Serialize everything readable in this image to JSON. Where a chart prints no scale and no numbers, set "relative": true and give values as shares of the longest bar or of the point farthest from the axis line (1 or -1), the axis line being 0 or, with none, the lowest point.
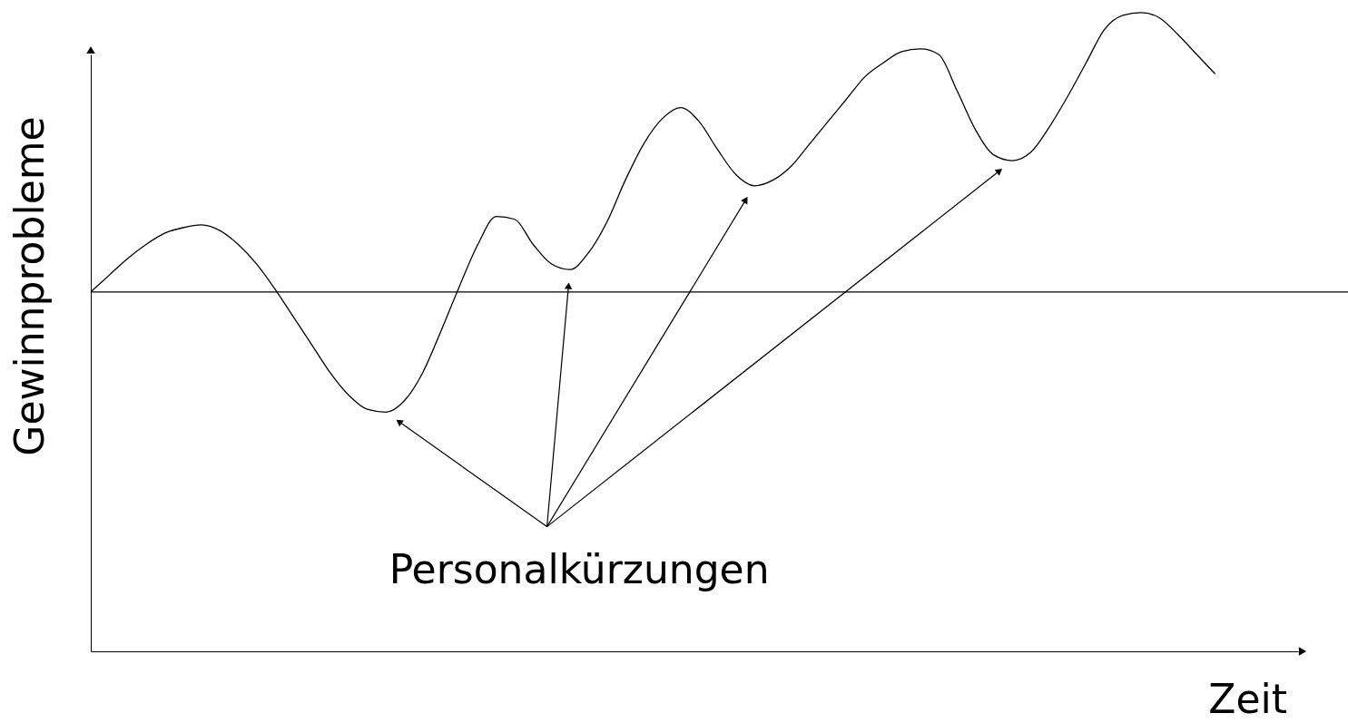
{
  "chart_data": {
    "type": "line",
    "relative": true,
    "ylabel": "Gewinnprobleme",
    "annotations": [
      "Personalkürzungen",
      "Zeit"
    ],
    "color": "#000000",
    "categories": [
      null,
      null,
      null,
      null,
      null,
      null,
      null,
      null,
      null,
      null,
      null,
      null,
      null,
      null,
      null,
      null,
      null,
      null,
      null,
      null,
      null,
      null,
      null,
      null,
      null,
      null,
      null,
      null,
      null,
      null,
      null,
      null,
      null,
      null,
      null,
      null,
      null,
      null,
      null,
      null,
      null,
      null,
      null,
      null,
      null,
      null,
      null,
      null,
      null,
      null,
      null,
      null,
      null,
      null,
      null,
      null,
      null,
      null,
      null,
      null,
      null,
      null
    ],
    "values": [
      0,
      0.06,
      0.12,
      0.17,
      0.21,
      0.23,
      0.24,
      0.22,
      0.17,
      0.1,
      0.01,
      -0.09,
      -0.19,
      -0.29,
      -0.37,
      -0.42,
      -0.43,
      -0.39,
      -0.29,
      -0.14,
      0.02,
      0.17,
      0.27,
      0.26,
      0.17,
      0.1,
      0.08,
      0.14,
      0.25,
      0.4,
      0.53,
      0.62,
      0.66,
      0.61,
      0.51,
      0.42,
      0.38,
      0.4,
      0.45,
      0.53,
      0.61,
      0.69,
      0.77,
      0.82,
      0.86,
      0.87,
      0.85,
      0.72,
      0.58,
      0.49,
      0.47,
      0.5,
      0.59,
      0.7,
      0.82,
      0.94,
      0.99,
      1.0,
      0.98,
      0.92,
      0.85,
      0.78
    ]
  }
}
